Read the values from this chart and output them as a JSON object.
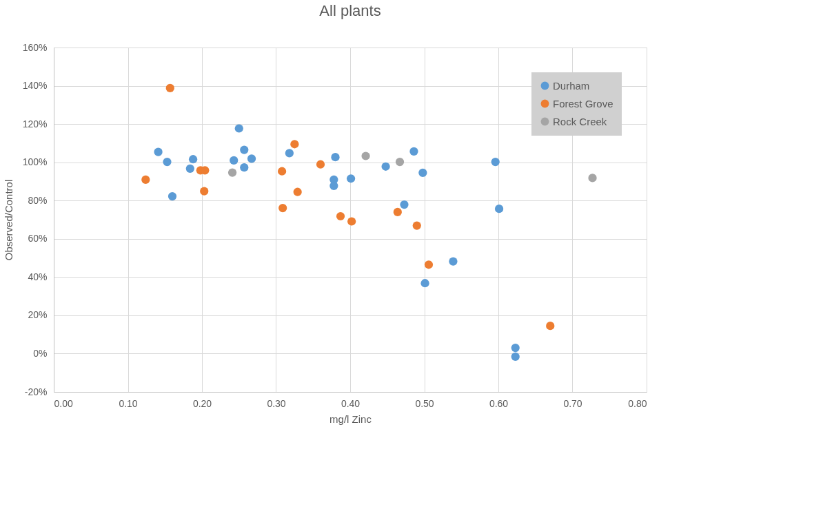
{
  "chart_data": {
    "type": "scatter",
    "title": "All plants",
    "xlabel": "mg/l Zinc",
    "ylabel": "Observed/Control",
    "xlim": [
      0,
      0.8
    ],
    "xticks": [
      {
        "value": 0,
        "label": "0.00"
      },
      {
        "value": 0.1,
        "label": "0.10"
      },
      {
        "value": 0.2,
        "label": "0.20"
      },
      {
        "value": 0.3,
        "label": "0.30"
      },
      {
        "value": 0.4,
        "label": "0.40"
      },
      {
        "value": 0.5,
        "label": "0.50"
      },
      {
        "value": 0.6,
        "label": "0.60"
      },
      {
        "value": 0.7,
        "label": "0.70"
      },
      {
        "value": 0.8,
        "label": "0.80"
      }
    ],
    "ylim": [
      -20,
      160
    ],
    "yticks": [
      {
        "value": -20,
        "label": "-20%"
      },
      {
        "value": 0,
        "label": "0%"
      },
      {
        "value": 20,
        "label": "20%"
      },
      {
        "value": 40,
        "label": "40%"
      },
      {
        "value": 60,
        "label": "60%"
      },
      {
        "value": 80,
        "label": "80%"
      },
      {
        "value": 100,
        "label": "100%"
      },
      {
        "value": 120,
        "label": "120%"
      },
      {
        "value": 140,
        "label": "140%"
      },
      {
        "value": 160,
        "label": "160%"
      }
    ],
    "grid": true,
    "legend": "top right",
    "marker": "circle",
    "series": [
      {
        "name": "Durham",
        "color": "#5b9bd5",
        "x": [
          0.141,
          0.153,
          0.188,
          0.184,
          0.16,
          0.25,
          0.257,
          0.243,
          0.267,
          0.257,
          0.318,
          0.38,
          0.378,
          0.378,
          0.401,
          0.448,
          0.486,
          0.498,
          0.596,
          0.601,
          0.473,
          0.539,
          0.501,
          0.623,
          0.623
        ],
        "values": [
          105.4,
          100.2,
          101.6,
          96.7,
          82.2,
          117.7,
          106.5,
          101,
          101.9,
          97.3,
          104.8,
          102.7,
          90.9,
          87.7,
          91.5,
          97.8,
          105.7,
          94.5,
          100.2,
          75.7,
          77.9,
          48.2,
          36.8,
          3.0,
          -1.6
        ]
      },
      {
        "name": "Forest Grove",
        "color": "#ed7d31",
        "x": [
          0.157,
          0.198,
          0.204,
          0.203,
          0.124,
          0.325,
          0.308,
          0.329,
          0.309,
          0.36,
          0.387,
          0.402,
          0.464,
          0.49,
          0.506,
          0.67
        ],
        "values": [
          138.8,
          95.8,
          95.8,
          84.9,
          90.9,
          109.5,
          95.3,
          84.5,
          76.1,
          98.9,
          71.8,
          69.1,
          74,
          66.9,
          46.5,
          14.5
        ]
      },
      {
        "name": "Rock Creek",
        "color": "#a5a5a5",
        "x": [
          0.241,
          0.421,
          0.467,
          0.727
        ],
        "values": [
          94.6,
          103.3,
          100.2,
          91.8
        ]
      }
    ]
  }
}
